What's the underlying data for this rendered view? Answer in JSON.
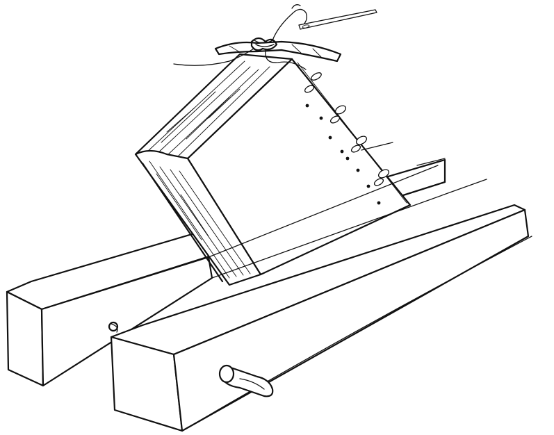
{
  "illustration": {
    "subject": "",
    "ink_color": "#111111",
    "paper_color": "#ffffff",
    "icons": [
      "needle-icon",
      "spindle-knob-icon",
      "side-handle-icon"
    ]
  }
}
